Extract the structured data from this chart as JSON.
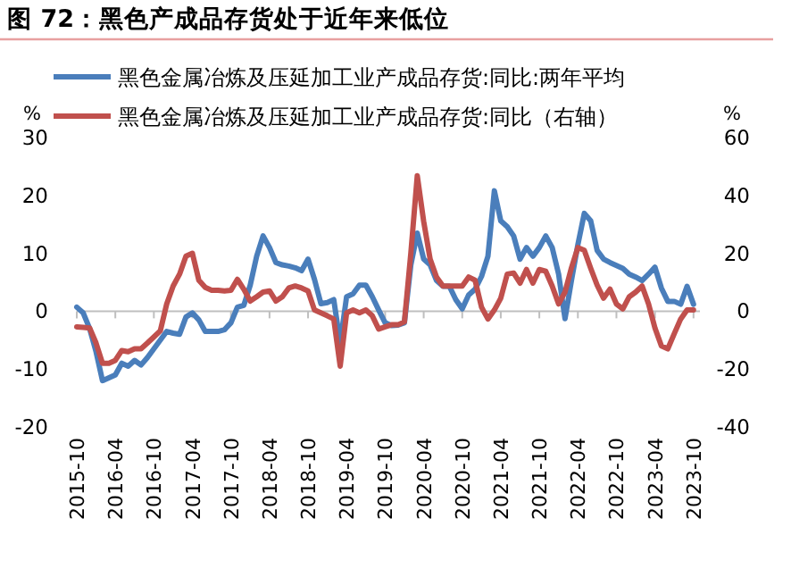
{
  "chart_data": {
    "type": "line",
    "title": "图 72：黑色产成品存货处于近年来低位",
    "ylabel": "%",
    "y2label": "%",
    "legend": "top",
    "line_style": "solid",
    "x": [
      "2015-10",
      "2015-11",
      "2015-12",
      "2016-01",
      "2016-02",
      "2016-03",
      "2016-04",
      "2016-05",
      "2016-06",
      "2016-07",
      "2016-08",
      "2016-09",
      "2016-10",
      "2016-11",
      "2016-12",
      "2017-01",
      "2017-02",
      "2017-03",
      "2017-04",
      "2017-05",
      "2017-06",
      "2017-07",
      "2017-08",
      "2017-09",
      "2017-10",
      "2017-11",
      "2017-12",
      "2018-01",
      "2018-02",
      "2018-03",
      "2018-04",
      "2018-05",
      "2018-06",
      "2018-07",
      "2018-08",
      "2018-09",
      "2018-10",
      "2018-11",
      "2018-12",
      "2019-01",
      "2019-02",
      "2019-03",
      "2019-04",
      "2019-05",
      "2019-06",
      "2019-07",
      "2019-08",
      "2019-09",
      "2019-10",
      "2019-11",
      "2019-12",
      "2020-01",
      "2020-02",
      "2020-03",
      "2020-04",
      "2020-05",
      "2020-06",
      "2020-07",
      "2020-08",
      "2020-09",
      "2020-10",
      "2020-11",
      "2020-12",
      "2021-01",
      "2021-02",
      "2021-03",
      "2021-04",
      "2021-05",
      "2021-06",
      "2021-07",
      "2021-08",
      "2021-09",
      "2021-10",
      "2021-11",
      "2021-12",
      "2022-01",
      "2022-02",
      "2022-03",
      "2022-04",
      "2022-05",
      "2022-06",
      "2022-07",
      "2022-08",
      "2022-09",
      "2022-10",
      "2022-11",
      "2022-12",
      "2023-01",
      "2023-02",
      "2023-03",
      "2023-04",
      "2023-05",
      "2023-06",
      "2023-07",
      "2023-08",
      "2023-09",
      "2023-10"
    ],
    "series": [
      {
        "name": "黑色金属冶炼及压延加工业产成品存货:同比:两年平均",
        "color": "#4a7ebb",
        "values": [
          0.7,
          -0.3,
          -3,
          -7,
          -12,
          -11.5,
          -11,
          -9,
          -9.5,
          -8.5,
          -9.3,
          -8,
          -6.5,
          -5,
          -3.5,
          -3.8,
          -4,
          -1,
          -0.3,
          -1.5,
          -3.5,
          -3.5,
          -3.5,
          -3.2,
          -2,
          0.7,
          1,
          4.5,
          9.5,
          13,
          11,
          8.4,
          8,
          7.8,
          7.5,
          7,
          9,
          5.5,
          1.3,
          1.5,
          2,
          -5.5,
          2.5,
          3,
          4.5,
          4.5,
          2.5,
          0.2,
          -2,
          -2.5,
          -2.4,
          -2,
          8,
          13.5,
          9,
          8,
          5.3,
          4.3,
          4.3,
          2,
          0.4,
          2.8,
          3.8,
          6,
          9.5,
          20.8,
          15.6,
          14.6,
          13,
          9,
          11,
          9.5,
          11,
          13,
          11,
          6.4,
          -1.3,
          5.3,
          11.5,
          16.9,
          15.6,
          10.5,
          9,
          8.4,
          7.9,
          7.4,
          6.4,
          5.9,
          5.3,
          6.4,
          7.6,
          4,
          1.7,
          1.7,
          1.2,
          4.3,
          1.2
        ]
      },
      {
        "name": "黑色金属冶炼及压延加工业产成品存货:同比（右轴）",
        "color": "#c0504d",
        "axis": "y2",
        "values": [
          -5.4,
          -5.6,
          -5.8,
          -11,
          -18,
          -18,
          -17,
          -13.6,
          -14,
          -13,
          -13,
          -11,
          -8.9,
          -6.8,
          2.5,
          8.7,
          12.8,
          19,
          20,
          10.7,
          8.2,
          7.2,
          7.2,
          7,
          7.2,
          11,
          7.6,
          3.5,
          5,
          6.6,
          7,
          3.5,
          5,
          8,
          8.7,
          8,
          7,
          0.4,
          -0.6,
          -1.6,
          -2.7,
          -19,
          -0.6,
          0.4,
          -0.6,
          0.4,
          -1.6,
          -6.2,
          -5.4,
          -4.7,
          -4.7,
          -3.7,
          20,
          46.8,
          31,
          18,
          11.8,
          8.7,
          8.7,
          8.7,
          8.7,
          11.8,
          10.7,
          1.4,
          -2.7,
          0.4,
          4.5,
          12.8,
          13.2,
          9.7,
          14.4,
          9.7,
          14.4,
          13.8,
          8.7,
          2.5,
          6.6,
          15,
          22,
          21,
          14.8,
          9,
          4.5,
          7.6,
          2.5,
          0.8,
          5,
          6.6,
          8.7,
          2.5,
          -5.8,
          -12,
          -13,
          -7.8,
          -2.7,
          0.4,
          0.4
        ]
      }
    ],
    "xlim": [
      "2015-10",
      "2023-11"
    ],
    "xticks": [
      "2015-10",
      "2016-04",
      "2016-10",
      "2017-04",
      "2017-10",
      "2018-04",
      "2018-10",
      "2019-04",
      "2019-10",
      "2020-04",
      "2020-10",
      "2021-04",
      "2021-10",
      "2022-04",
      "2022-10",
      "2023-04",
      "2023-10"
    ],
    "ylim": [
      -20,
      30
    ],
    "yticks": [
      -20,
      -10,
      0,
      10,
      20,
      30
    ],
    "y2lim": [
      -40,
      60
    ],
    "y2ticks": [
      -40,
      -20,
      0,
      20,
      40,
      60
    ]
  }
}
